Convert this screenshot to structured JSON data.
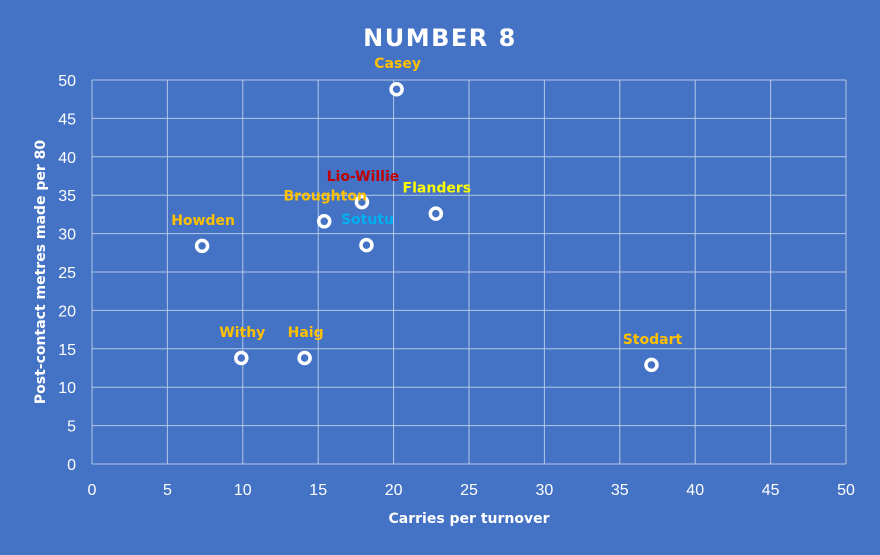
{
  "chart_data": {
    "type": "scatter",
    "title": "NUMBER 8",
    "xlabel": "Carries per turnover",
    "ylabel": "Post-contact metres made per 80",
    "xlim": [
      0,
      50
    ],
    "ylim": [
      0,
      50
    ],
    "x_ticks": [
      "0",
      "5",
      "10",
      "15",
      "20",
      "25",
      "30",
      "35",
      "40",
      "45",
      "50"
    ],
    "y_ticks": [
      "0",
      "5",
      "10",
      "15",
      "20",
      "25",
      "30",
      "35",
      "40",
      "45",
      "50"
    ],
    "grid": true,
    "background_color": "#4472c4",
    "gridline_color": "#b4c7e7",
    "marker_color": "#ffffff",
    "points": [
      {
        "label": "Casey",
        "x": 20.2,
        "y": 48.8,
        "label_color": "#ffc000"
      },
      {
        "label": "Lio-Willie",
        "x": 17.9,
        "y": 34.1,
        "label_color": "#c00000"
      },
      {
        "label": "Broughton",
        "x": 15.4,
        "y": 31.6,
        "label_color": "#ffc000"
      },
      {
        "label": "Flanders",
        "x": 22.8,
        "y": 32.6,
        "label_color": "#ffff00"
      },
      {
        "label": "Sotutu",
        "x": 18.2,
        "y": 28.5,
        "label_color": "#00b0f0"
      },
      {
        "label": "Howden",
        "x": 7.3,
        "y": 28.4,
        "label_color": "#ffc000"
      },
      {
        "label": "Withy",
        "x": 9.9,
        "y": 13.8,
        "label_color": "#ffc000"
      },
      {
        "label": "Haig",
        "x": 14.1,
        "y": 13.8,
        "label_color": "#ffc000"
      },
      {
        "label": "Stodart",
        "x": 37.1,
        "y": 12.9,
        "label_color": "#ffc000"
      }
    ]
  }
}
